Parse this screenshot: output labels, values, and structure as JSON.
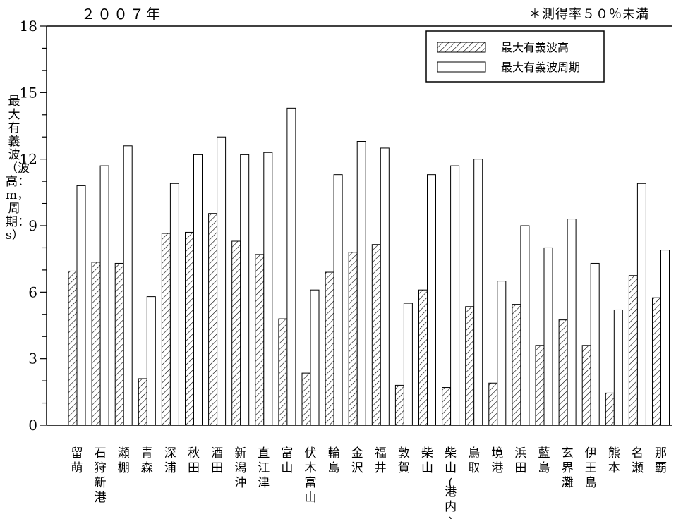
{
  "header": {
    "year_label": "２００７年",
    "note": "＊測得率５０％未満"
  },
  "axis": {
    "ylabel": "最大有義波（波高：m，周期：s）"
  },
  "chart_data": {
    "type": "bar",
    "ylim": [
      0,
      18
    ],
    "yticks": [
      0,
      3,
      6,
      9,
      12,
      15,
      18
    ],
    "categories": [
      "留萌",
      "石狩新港",
      "瀬棚",
      "青森",
      "深浦",
      "秋田",
      "酒田",
      "新潟沖",
      "直江津",
      "富山",
      "伏木富山",
      "輪島",
      "金沢",
      "福井",
      "敦賀",
      "柴山",
      "柴山(港内)",
      "鳥取",
      "境港",
      "浜田",
      "藍島",
      "玄界灘",
      "伊王島",
      "熊本",
      "名瀬",
      "那覇"
    ],
    "series": [
      {
        "name": "最大有義波高",
        "pattern": "hatched",
        "values": [
          6.95,
          7.35,
          7.3,
          2.1,
          8.65,
          8.7,
          9.55,
          8.3,
          7.7,
          4.8,
          2.35,
          6.9,
          7.8,
          8.15,
          1.8,
          6.1,
          1.7,
          5.35,
          1.9,
          5.45,
          3.6,
          4.75,
          3.6,
          1.45,
          6.75,
          5.75
        ]
      },
      {
        "name": "最大有義波周期",
        "pattern": "open",
        "values": [
          10.8,
          11.7,
          12.6,
          5.8,
          10.9,
          12.2,
          13.0,
          12.2,
          12.3,
          14.3,
          6.1,
          11.3,
          12.8,
          12.5,
          5.5,
          11.3,
          11.7,
          12.0,
          6.5,
          9.0,
          8.0,
          9.3,
          7.3,
          5.2,
          10.9,
          7.9
        ]
      }
    ],
    "legend": "top-right",
    "grid": false,
    "colors": {
      "bar_stroke": "#000000",
      "hatch": "#000000",
      "open_fill": "#ffffff"
    }
  }
}
